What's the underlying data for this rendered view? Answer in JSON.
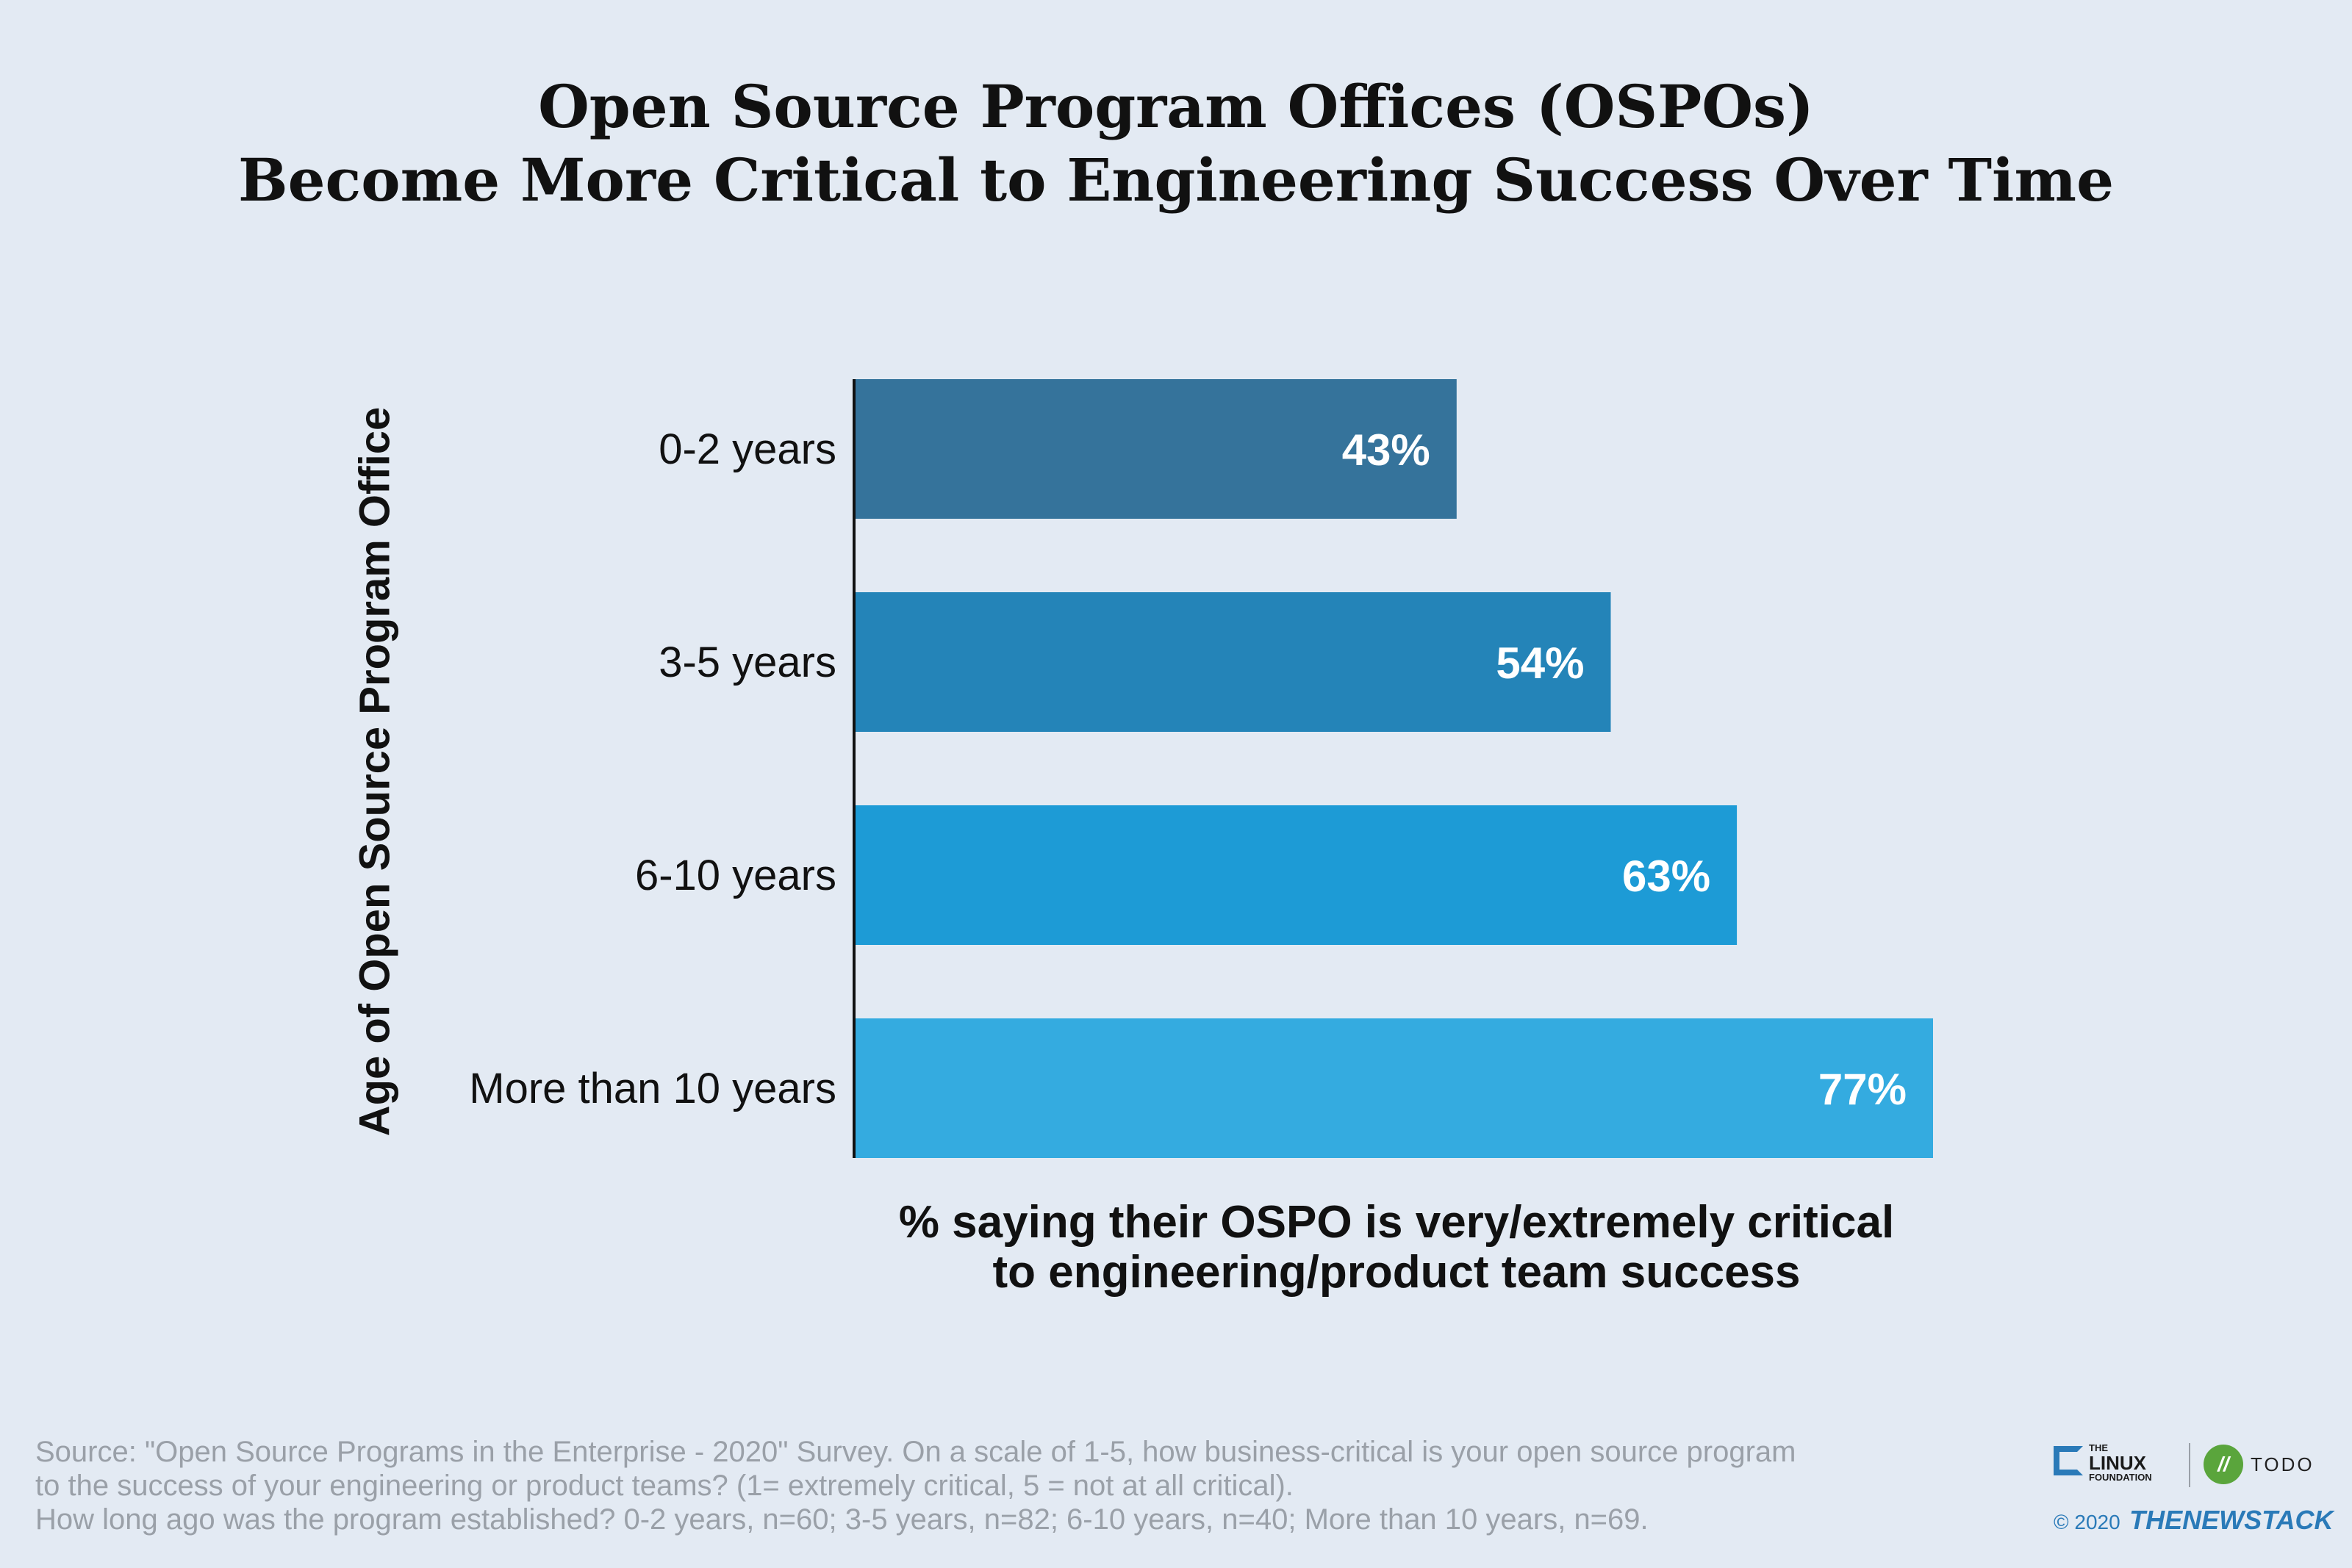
{
  "chart_data": {
    "type": "bar",
    "orientation": "horizontal",
    "title_lines": [
      "Open Source Program Offices (OSPOs)",
      "Become More Critical to Engineering Success Over Time"
    ],
    "ylabel": "Age of Open Source Program Office",
    "xlabel_lines": [
      "% saying their OSPO is very/extremely critical",
      "to engineering/product team success"
    ],
    "categories": [
      "0-2 years",
      "3-5 years",
      "6-10 years",
      "More than 10 years"
    ],
    "values": [
      43,
      54,
      63,
      77
    ],
    "value_labels": [
      "43%",
      "54%",
      "63%",
      "77%"
    ],
    "colors": [
      "#35739b",
      "#2484b8",
      "#1d9bd6",
      "#34abe0"
    ],
    "grid": false,
    "legend": "none"
  },
  "source_lines": [
    "Source: \"Open Source Programs in the Enterprise - 2020\" Survey. On a scale of 1-5, how business-critical is your open source program",
    "to the success of your engineering or product teams? (1= extremely critical, 5 = not at all critical).",
    "How long ago was the program established? 0-2 years, n=60; 3-5 years, n=82; 6-10 years, n=40; More than 10 years, n=69."
  ],
  "logos": {
    "linux_foundation_small": "THE",
    "linux_foundation_big": "LINUX",
    "linux_foundation_sub": "FOUNDATION",
    "todo_mark": "//",
    "todo_text": "TODO",
    "copyright": "© 2020",
    "newstack": "THENEWSTACK"
  }
}
